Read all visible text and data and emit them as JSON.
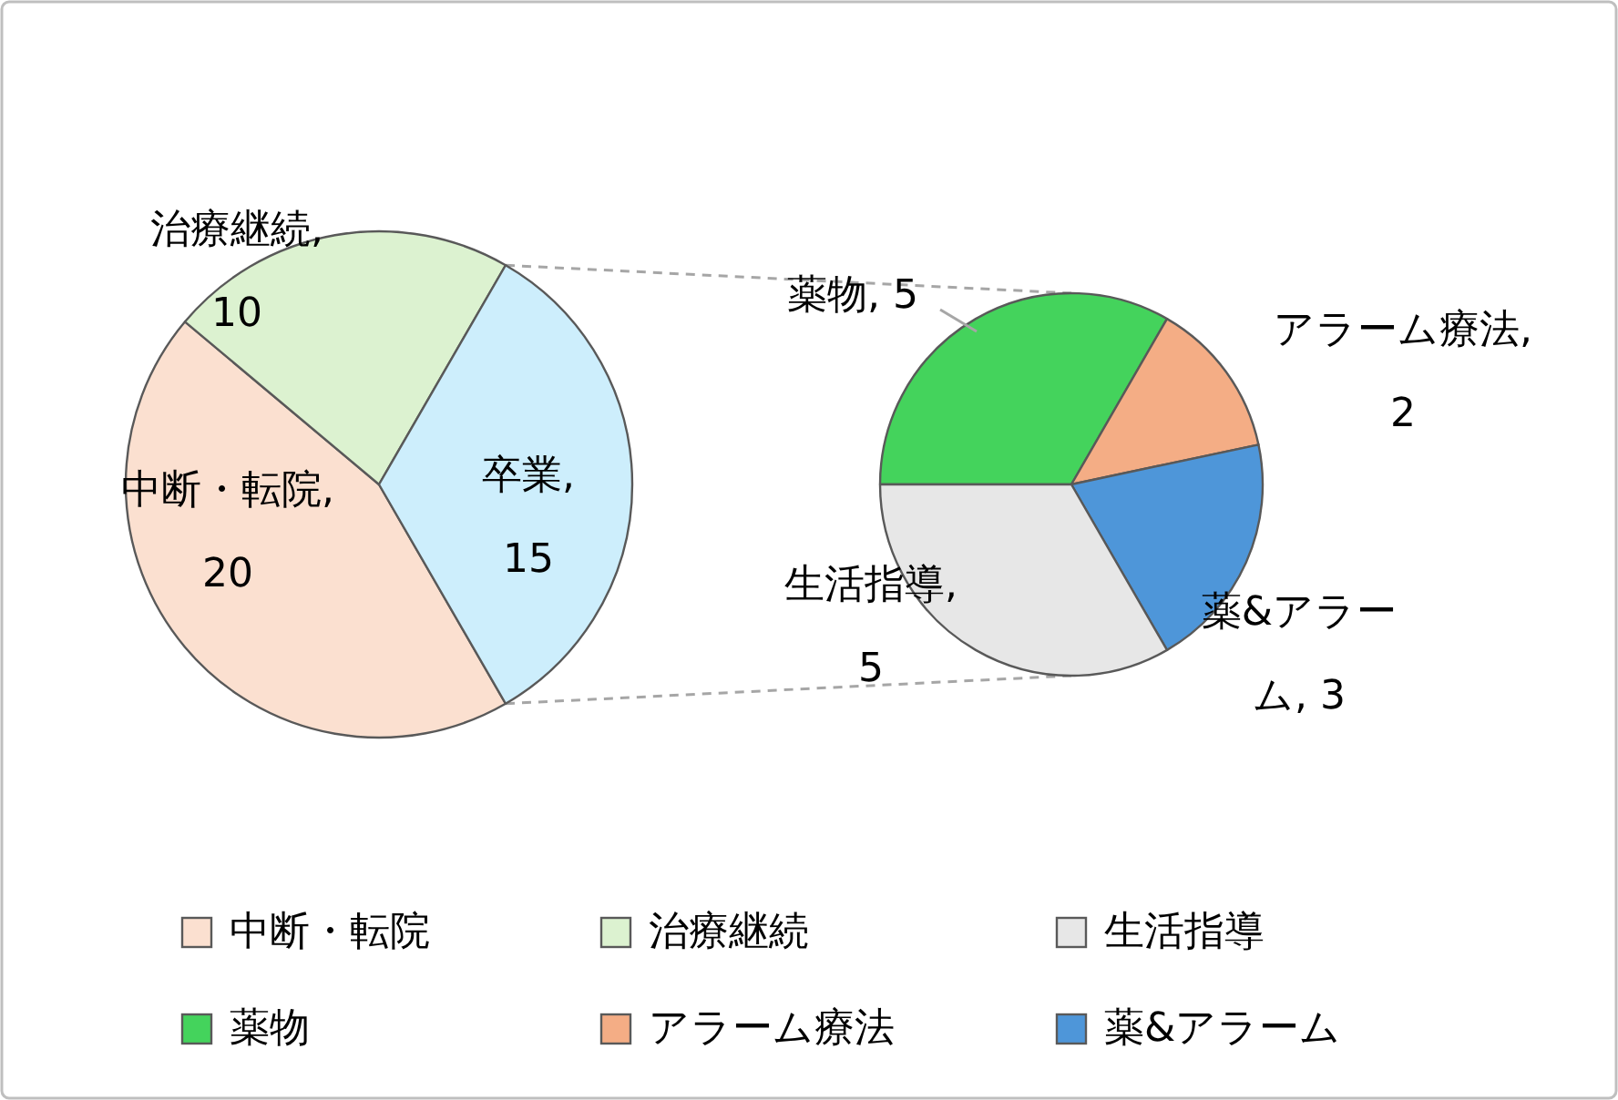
{
  "chart_data": [
    {
      "type": "pie",
      "categories": [
        "中断・転院",
        "治療継続",
        "卒業"
      ],
      "values": [
        20,
        10,
        15
      ],
      "colors": [
        "#fbe0d0",
        "#dcf2d0",
        "#cdeefc"
      ],
      "value_labels": [
        ", 20",
        ", 10",
        ", 15"
      ],
      "legend": "bottom"
    },
    {
      "type": "pie",
      "categories": [
        "薬物",
        "アラーム療法",
        "薬&アラーム",
        "生活指導"
      ],
      "values": [
        5,
        2,
        3,
        5
      ],
      "colors": [
        "#44d35c",
        "#f4ad85",
        "#4e96d9",
        "#e7e7e7"
      ],
      "value_labels": [
        ", 5",
        ", 2",
        ", 3",
        ", 5"
      ],
      "legend": "bottom"
    }
  ]
}
